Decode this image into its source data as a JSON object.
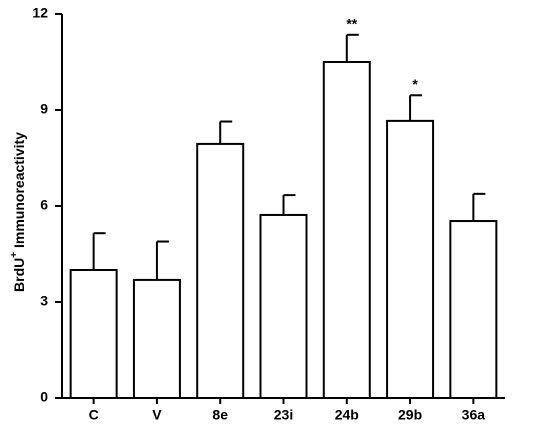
{
  "chart_data": {
    "type": "bar",
    "y_label": {
      "main": "BrdU",
      "sup": "+",
      "rest": " Immunoreactivity"
    },
    "categories": [
      "C",
      "V",
      "8e",
      "23i",
      "24b",
      "29b",
      "36a"
    ],
    "values": [
      4.0,
      3.69,
      7.94,
      5.72,
      10.5,
      8.66,
      5.53
    ],
    "errors": [
      1.15,
      1.2,
      0.7,
      0.62,
      0.85,
      0.8,
      0.85
    ],
    "annotations": [
      null,
      null,
      null,
      null,
      "**",
      "*",
      null
    ],
    "color": "#ffffff",
    "ylim": [
      0,
      12
    ],
    "yticks": [
      0,
      3,
      6,
      9,
      12
    ],
    "grid": false
  }
}
